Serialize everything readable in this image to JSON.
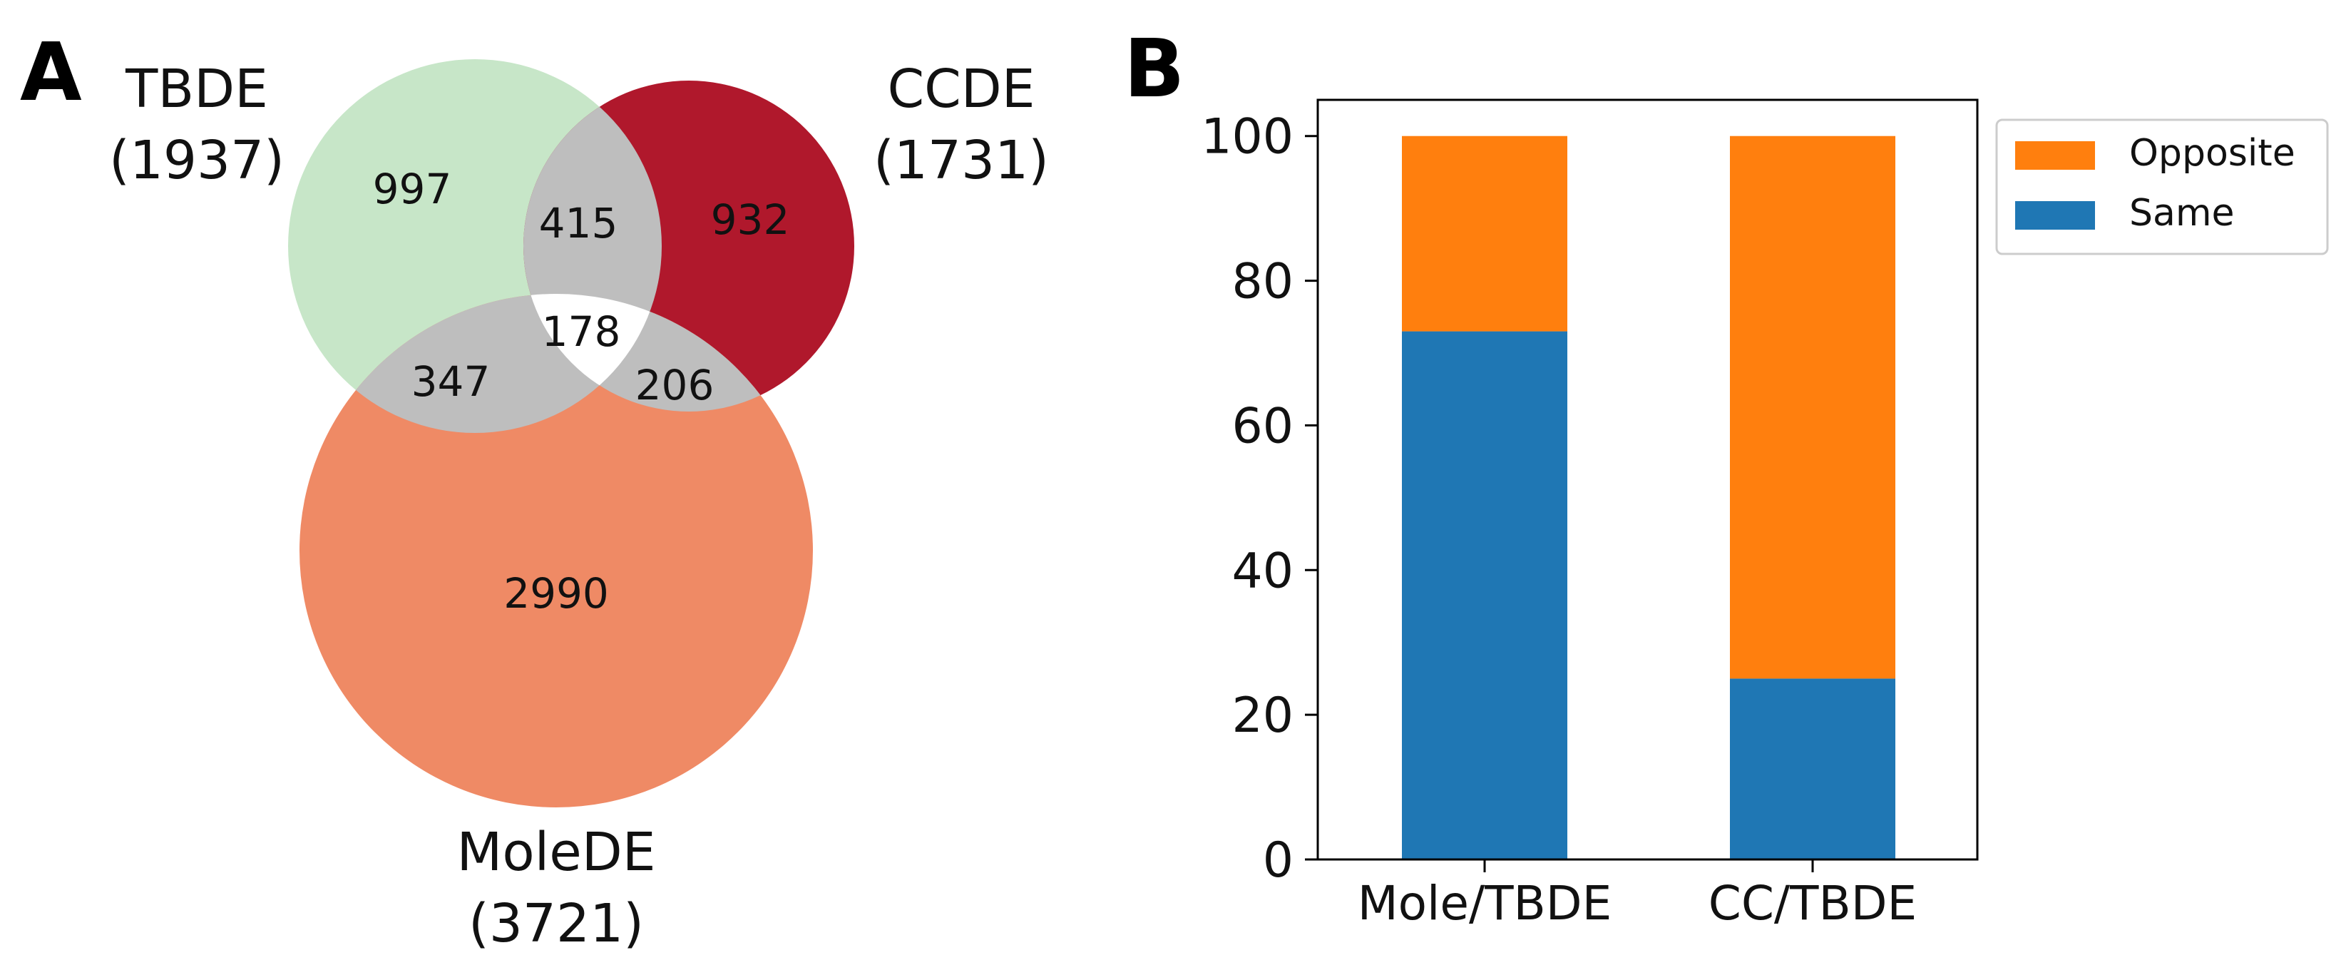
{
  "panels": {
    "a_label": "A",
    "b_label": "B"
  },
  "venn": {
    "sets": [
      {
        "name": "TBDE",
        "count": "(1937)",
        "color": "#c7e6c8"
      },
      {
        "name": "CCDE",
        "count": "(1731)",
        "color": "#b0182c"
      },
      {
        "name": "MoleDE",
        "count": "(3721)",
        "color": "#ef8a65"
      }
    ],
    "regions": {
      "tbde_only": "997",
      "ccde_only": "932",
      "mole_only": "2990",
      "tbde_ccde": "415",
      "tbde_mole": "347",
      "ccde_mole": "206",
      "all_three": "178"
    },
    "overlap_color": "#bebebe",
    "center_color": "#ffffff"
  },
  "chart_data": {
    "type": "bar",
    "stacked": true,
    "title": "",
    "xlabel": "",
    "ylabel": "",
    "categories": [
      "Mole/TBDE",
      "CC/TBDE"
    ],
    "series": [
      {
        "name": "Same",
        "values": [
          73,
          25
        ],
        "color": "#1f77b4"
      },
      {
        "name": "Opposite",
        "values": [
          27,
          75
        ],
        "color": "#ff7f0e"
      }
    ],
    "ylim": [
      0,
      105
    ],
    "yticks": [
      "0",
      "20",
      "40",
      "60",
      "80",
      "100"
    ],
    "legend": {
      "position": "outside-top-right",
      "entries": [
        "Opposite",
        "Same"
      ]
    }
  }
}
